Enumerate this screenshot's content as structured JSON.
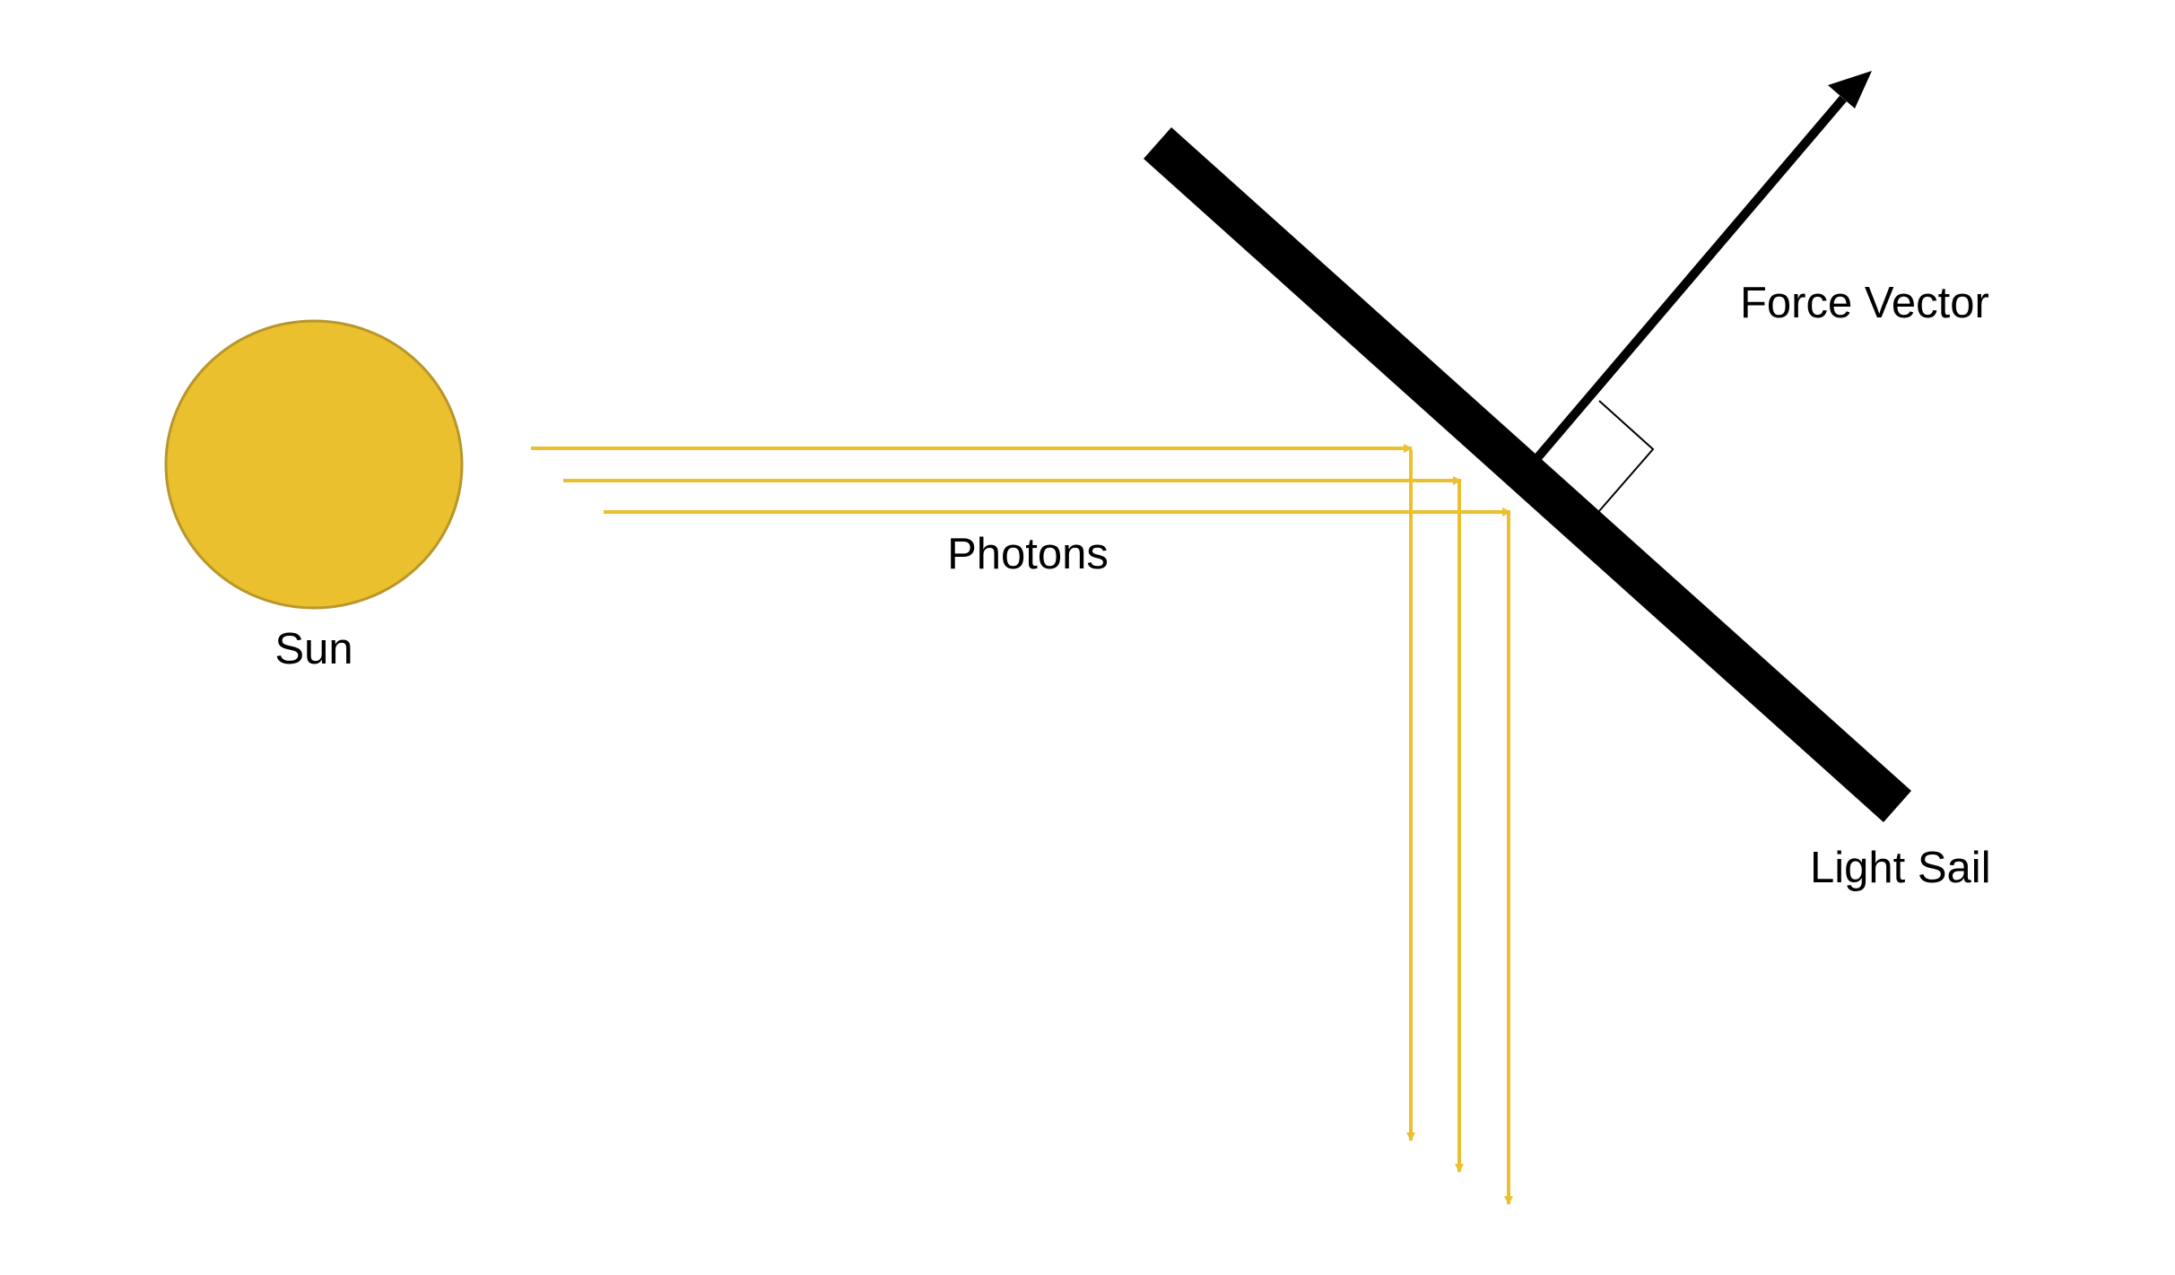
{
  "labels": {
    "sun": "Sun",
    "photons": "Photons",
    "force_vector": "Force Vector",
    "light_sail": "Light Sail"
  },
  "colors": {
    "sun_fill": "#EBC02E",
    "sun_stroke": "#B8962A",
    "photon": "#EBC02E",
    "sail": "#000000",
    "force_arrow": "#000000",
    "background": "#FFFFFF"
  },
  "photon_ray_count": 3
}
